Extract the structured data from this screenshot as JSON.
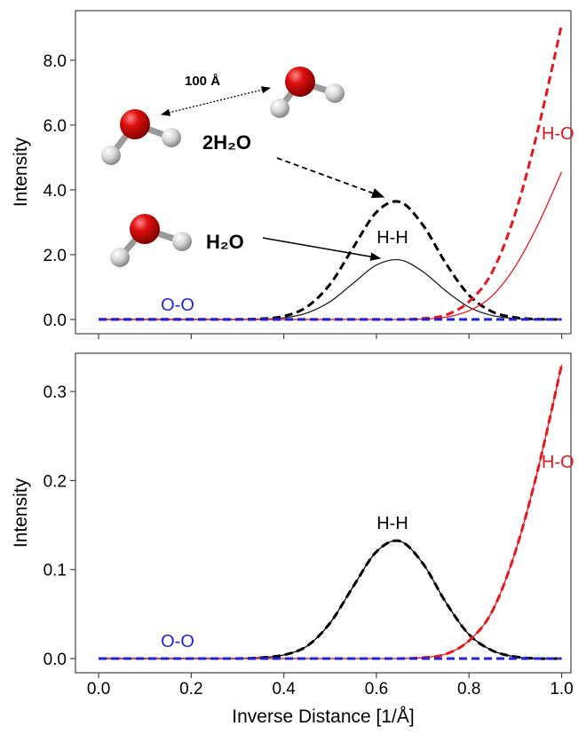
{
  "chart_data": [
    {
      "type": "line",
      "ylabel": "Intensity",
      "xlim": [
        -0.05,
        1.02
      ],
      "ylim": [
        -0.44,
        9.53
      ],
      "xticks": [
        0,
        0.2,
        0.4,
        0.6,
        0.8,
        1
      ],
      "yticks": [
        {
          "value": 0,
          "label": "0.0"
        },
        {
          "value": 2,
          "label": "2.0"
        },
        {
          "value": 4,
          "label": "4.0"
        },
        {
          "value": 6,
          "label": "6.0"
        },
        {
          "value": 8,
          "label": "8.0"
        }
      ],
      "x": [
        0,
        0.05,
        0.1,
        0.15,
        0.2,
        0.25,
        0.3,
        0.35,
        0.4,
        0.45,
        0.5,
        0.55,
        0.6,
        0.65,
        0.7,
        0.75,
        0.8,
        0.85,
        0.9,
        0.95,
        1.0
      ],
      "series": [
        {
          "color": "#222222",
          "style": "solid",
          "values": [
            0,
            0,
            0,
            0,
            0,
            0,
            0,
            0.01,
            0.05,
            0.2,
            0.55,
            1.12,
            1.68,
            1.84,
            1.48,
            0.88,
            0.38,
            0.12,
            0.03,
            0,
            0
          ]
        },
        {
          "color": "#000000",
          "style": "dashed",
          "values": [
            0,
            0,
            0,
            0,
            0,
            0,
            0,
            0.02,
            0.1,
            0.39,
            1.09,
            2.22,
            3.31,
            3.63,
            2.92,
            1.73,
            0.75,
            0.24,
            0.06,
            0.01,
            0
          ]
        },
        {
          "color": "#e8161b",
          "style": "solid",
          "values": [
            0,
            0,
            0,
            0,
            0,
            0,
            0,
            0,
            0,
            0,
            0,
            0,
            0,
            0,
            0.01,
            0.07,
            0.27,
            0.73,
            1.64,
            2.96,
            4.55
          ]
        },
        {
          "color": "#e8161b",
          "style": "dashed",
          "values": [
            0,
            0,
            0,
            0,
            0,
            0,
            0,
            0,
            0,
            0,
            0,
            0,
            0,
            0,
            0.03,
            0.14,
            0.55,
            1.46,
            3.28,
            5.92,
            9.1
          ]
        },
        {
          "color": "#2222dd",
          "style": "dashed",
          "values": [
            0,
            0,
            0,
            0,
            0,
            0,
            0,
            0,
            0,
            0,
            0,
            0,
            0,
            0,
            0,
            0,
            0,
            0,
            0,
            0,
            0
          ]
        }
      ],
      "annotations": [
        "H-H",
        "H-O",
        "O-O",
        "2H₂O",
        "H₂O",
        "100 Å"
      ]
    },
    {
      "type": "line",
      "ylabel": "Intensity",
      "xlabel": "Inverse Distance [1/Å]",
      "xlim": [
        -0.05,
        1.02
      ],
      "ylim": [
        -0.016,
        0.343
      ],
      "xticks": [
        {
          "value": 0,
          "label": "0.0"
        },
        {
          "value": 0.2,
          "label": "0.2"
        },
        {
          "value": 0.4,
          "label": "0.4"
        },
        {
          "value": 0.6,
          "label": "0.6"
        },
        {
          "value": 0.8,
          "label": "0.8"
        },
        {
          "value": 1,
          "label": "1.0"
        }
      ],
      "yticks": [
        {
          "value": 0,
          "label": "0.0"
        },
        {
          "value": 0.1,
          "label": "0.1"
        },
        {
          "value": 0.2,
          "label": "0.2"
        },
        {
          "value": 0.3,
          "label": "0.3"
        }
      ],
      "x": [
        0,
        0.05,
        0.1,
        0.15,
        0.2,
        0.25,
        0.3,
        0.35,
        0.4,
        0.45,
        0.5,
        0.55,
        0.6,
        0.65,
        0.7,
        0.75,
        0.8,
        0.85,
        0.9,
        0.95,
        1.0
      ],
      "series": [
        {
          "color": "#000000",
          "style": "solid",
          "values": [
            0,
            0,
            0,
            0,
            0,
            0,
            0,
            0.001,
            0.004,
            0.014,
            0.04,
            0.081,
            0.12,
            0.132,
            0.107,
            0.063,
            0.027,
            0.009,
            0.002,
            0,
            0
          ]
        },
        {
          "color": "#000000",
          "style": "dashed",
          "values": [
            0,
            0,
            0,
            0,
            0,
            0,
            0,
            0.001,
            0.004,
            0.014,
            0.04,
            0.081,
            0.12,
            0.132,
            0.107,
            0.063,
            0.027,
            0.009,
            0.002,
            0,
            0
          ]
        },
        {
          "color": "#e8161b",
          "style": "solid",
          "values": [
            0,
            0,
            0,
            0,
            0,
            0,
            0,
            0,
            0,
            0,
            0,
            0,
            0,
            0,
            0.001,
            0.005,
            0.02,
            0.053,
            0.12,
            0.215,
            0.33
          ]
        },
        {
          "color": "#e8161b",
          "style": "dashed",
          "values": [
            0,
            0,
            0,
            0,
            0,
            0,
            0,
            0,
            0,
            0,
            0,
            0,
            0,
            0,
            0.001,
            0.005,
            0.02,
            0.053,
            0.12,
            0.215,
            0.33
          ]
        },
        {
          "color": "#2222dd",
          "style": "dashed",
          "values": [
            0,
            0,
            0,
            0,
            0,
            0,
            0,
            0,
            0,
            0,
            0,
            0,
            0,
            0,
            0,
            0,
            0,
            0,
            0,
            0,
            0
          ]
        }
      ],
      "annotations": [
        "H-H",
        "H-O",
        "O-O"
      ]
    }
  ]
}
